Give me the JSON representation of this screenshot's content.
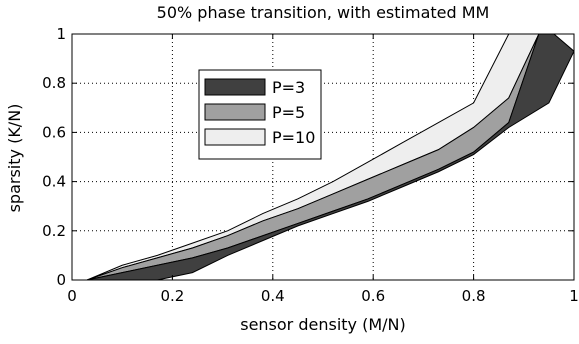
{
  "chart_data": {
    "type": "area",
    "title": "50% phase transition, with estimated MM",
    "xlabel": "sensor density (M/N)",
    "ylabel": "sparsity (K/N)",
    "xlim": [
      0,
      1
    ],
    "ylim": [
      0,
      1
    ],
    "x_ticks": [
      "0",
      "0.2",
      "0.4",
      "0.6",
      "0.8",
      "1"
    ],
    "y_ticks": [
      "0",
      "0.2",
      "0.4",
      "0.6",
      "0.8",
      "1"
    ],
    "grid": true,
    "legend_position": "top-left",
    "series": [
      {
        "name": "P=3",
        "fill": "#404040",
        "upper": [
          [
            0.03,
            0.0
          ],
          [
            0.1,
            0.03
          ],
          [
            0.17,
            0.06
          ],
          [
            0.24,
            0.09
          ],
          [
            0.31,
            0.13
          ],
          [
            0.38,
            0.18
          ],
          [
            0.45,
            0.23
          ],
          [
            0.52,
            0.28
          ],
          [
            0.59,
            0.33
          ],
          [
            0.66,
            0.39
          ],
          [
            0.73,
            0.45
          ],
          [
            0.8,
            0.52
          ],
          [
            0.87,
            0.64
          ],
          [
            0.93,
            1.0
          ],
          [
            0.96,
            1.0
          ]
        ],
        "lower": [
          [
            0.03,
            0.0
          ],
          [
            0.1,
            0.0
          ],
          [
            0.17,
            0.0
          ],
          [
            0.24,
            0.03
          ],
          [
            0.31,
            0.1
          ],
          [
            0.38,
            0.16
          ],
          [
            0.45,
            0.22
          ],
          [
            0.52,
            0.27
          ],
          [
            0.59,
            0.32
          ],
          [
            0.66,
            0.38
          ],
          [
            0.73,
            0.44
          ],
          [
            0.8,
            0.51
          ],
          [
            0.87,
            0.62
          ],
          [
            0.95,
            0.72
          ],
          [
            1.0,
            0.93
          ]
        ]
      },
      {
        "name": "P=5",
        "fill": "#a0a0a0",
        "upper": [
          [
            0.03,
            0.0
          ],
          [
            0.1,
            0.05
          ],
          [
            0.17,
            0.09
          ],
          [
            0.24,
            0.13
          ],
          [
            0.31,
            0.18
          ],
          [
            0.38,
            0.24
          ],
          [
            0.45,
            0.29
          ],
          [
            0.52,
            0.35
          ],
          [
            0.59,
            0.41
          ],
          [
            0.66,
            0.47
          ],
          [
            0.73,
            0.53
          ],
          [
            0.8,
            0.62
          ],
          [
            0.87,
            0.74
          ],
          [
            0.93,
            1.0
          ],
          [
            0.96,
            1.0
          ]
        ],
        "lower": [
          [
            0.03,
            0.0
          ],
          [
            0.1,
            0.03
          ],
          [
            0.17,
            0.06
          ],
          [
            0.24,
            0.09
          ],
          [
            0.31,
            0.13
          ],
          [
            0.38,
            0.18
          ],
          [
            0.45,
            0.23
          ],
          [
            0.52,
            0.28
          ],
          [
            0.59,
            0.33
          ],
          [
            0.66,
            0.39
          ],
          [
            0.73,
            0.45
          ],
          [
            0.8,
            0.52
          ],
          [
            0.87,
            0.64
          ],
          [
            0.93,
            1.0
          ]
        ]
      },
      {
        "name": "P=10",
        "fill": "#eeeeee",
        "upper": [
          [
            0.03,
            0.0
          ],
          [
            0.1,
            0.06
          ],
          [
            0.17,
            0.1
          ],
          [
            0.24,
            0.15
          ],
          [
            0.31,
            0.2
          ],
          [
            0.38,
            0.27
          ],
          [
            0.45,
            0.33
          ],
          [
            0.52,
            0.4
          ],
          [
            0.59,
            0.48
          ],
          [
            0.66,
            0.56
          ],
          [
            0.73,
            0.64
          ],
          [
            0.8,
            0.72
          ],
          [
            0.87,
            1.0
          ],
          [
            0.93,
            1.0
          ]
        ],
        "lower": [
          [
            0.03,
            0.0
          ],
          [
            0.1,
            0.05
          ],
          [
            0.17,
            0.09
          ],
          [
            0.24,
            0.13
          ],
          [
            0.31,
            0.18
          ],
          [
            0.38,
            0.24
          ],
          [
            0.45,
            0.29
          ],
          [
            0.52,
            0.35
          ],
          [
            0.59,
            0.41
          ],
          [
            0.66,
            0.47
          ],
          [
            0.73,
            0.53
          ],
          [
            0.8,
            0.62
          ],
          [
            0.87,
            0.74
          ],
          [
            0.93,
            1.0
          ]
        ]
      }
    ]
  }
}
